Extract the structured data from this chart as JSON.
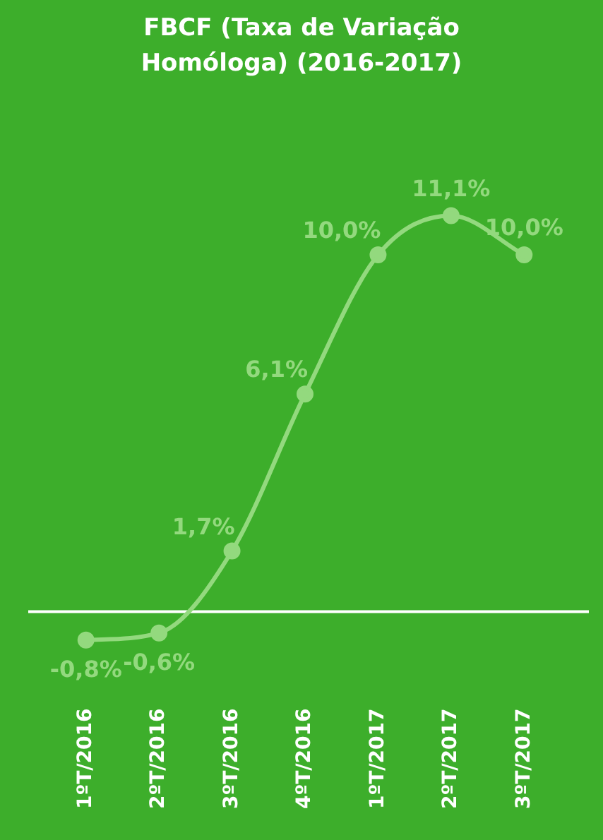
{
  "chart_data": {
    "type": "line",
    "title": "FBCF (Taxa de Variação Homóloga) (2016-2017)",
    "categories": [
      "1ºT/2016",
      "2ºT/2016",
      "3ºT/2016",
      "4ºT/2016",
      "1ºT/2017",
      "2ºT/2017",
      "3ºT/2017"
    ],
    "series": [
      {
        "color": "#93d97e",
        "values": [
          -0.8,
          -0.6,
          1.7,
          6.1,
          10.0,
          11.1,
          10.0
        ],
        "value_labels": [
          "-0,8%",
          "-0,6%",
          "1,7%",
          "6,1%",
          "10,0%",
          "11,1%",
          "10,0%"
        ]
      }
    ],
    "ref_lines": [
      {
        "axis": "y",
        "value": 0,
        "color": "#ffffff"
      }
    ],
    "marker": "circle",
    "legend": false,
    "grid": false,
    "tick_labels": "x"
  }
}
